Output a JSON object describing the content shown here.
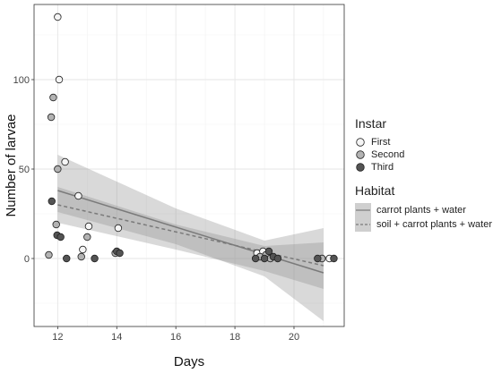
{
  "chart_data": {
    "type": "scatter",
    "xlabel": "Days",
    "ylabel": "Number of larvae",
    "xlim": [
      11.2,
      21.7
    ],
    "ylim": [
      -38,
      142
    ],
    "x_ticks": [
      12,
      14,
      16,
      18,
      20
    ],
    "y_ticks": [
      0,
      50,
      100
    ],
    "grid": true,
    "point_series": [
      {
        "name": "First",
        "color": "#f5f5f5",
        "points": [
          [
            12.0,
            135
          ],
          [
            12.05,
            100
          ],
          [
            12.25,
            54
          ],
          [
            12.7,
            35
          ],
          [
            12.85,
            5
          ],
          [
            13.05,
            18
          ],
          [
            14.05,
            17
          ],
          [
            18.75,
            3
          ],
          [
            18.95,
            4
          ],
          [
            21.2,
            0
          ]
        ]
      },
      {
        "name": "Second",
        "color": "#b3b3b3",
        "points": [
          [
            11.85,
            90
          ],
          [
            11.78,
            79
          ],
          [
            12.0,
            50
          ],
          [
            11.95,
            19
          ],
          [
            11.7,
            2
          ],
          [
            12.8,
            1
          ],
          [
            13.0,
            12
          ],
          [
            13.95,
            3
          ],
          [
            18.85,
            1
          ],
          [
            19.05,
            2
          ],
          [
            19.2,
            0
          ],
          [
            20.95,
            0
          ]
        ]
      },
      {
        "name": "Third",
        "color": "#545454",
        "points": [
          [
            11.8,
            32
          ],
          [
            11.98,
            13
          ],
          [
            12.1,
            12
          ],
          [
            12.3,
            0
          ],
          [
            13.25,
            0
          ],
          [
            14.0,
            4
          ],
          [
            14.1,
            3
          ],
          [
            18.7,
            0
          ],
          [
            19.0,
            0
          ],
          [
            19.15,
            4
          ],
          [
            19.3,
            1
          ],
          [
            19.45,
            0
          ],
          [
            20.8,
            0
          ],
          [
            21.35,
            0
          ]
        ]
      }
    ],
    "line_series": [
      {
        "name": "carrot plants + water",
        "dash": "solid",
        "line": [
          [
            12,
            38
          ],
          [
            21,
            -8
          ]
        ],
        "band_lower": [
          [
            12,
            26
          ],
          [
            16,
            8
          ],
          [
            19,
            -10
          ],
          [
            21,
            -35
          ]
        ],
        "band_upper": [
          [
            12,
            58
          ],
          [
            16,
            28
          ],
          [
            19,
            10
          ],
          [
            21,
            17
          ]
        ]
      },
      {
        "name": "soil + carrot plants + water",
        "dash": "dashed",
        "line": [
          [
            12,
            30
          ],
          [
            21,
            -4
          ]
        ],
        "band_lower": [
          [
            12,
            20
          ],
          [
            16,
            5
          ],
          [
            19,
            -7
          ],
          [
            21,
            -17
          ]
        ],
        "band_upper": [
          [
            12,
            40
          ],
          [
            16,
            19
          ],
          [
            19,
            7
          ],
          [
            21,
            9
          ]
        ]
      }
    ],
    "legend": {
      "position": "right",
      "instar_title": "Instar",
      "habitat_title": "Habitat"
    }
  }
}
